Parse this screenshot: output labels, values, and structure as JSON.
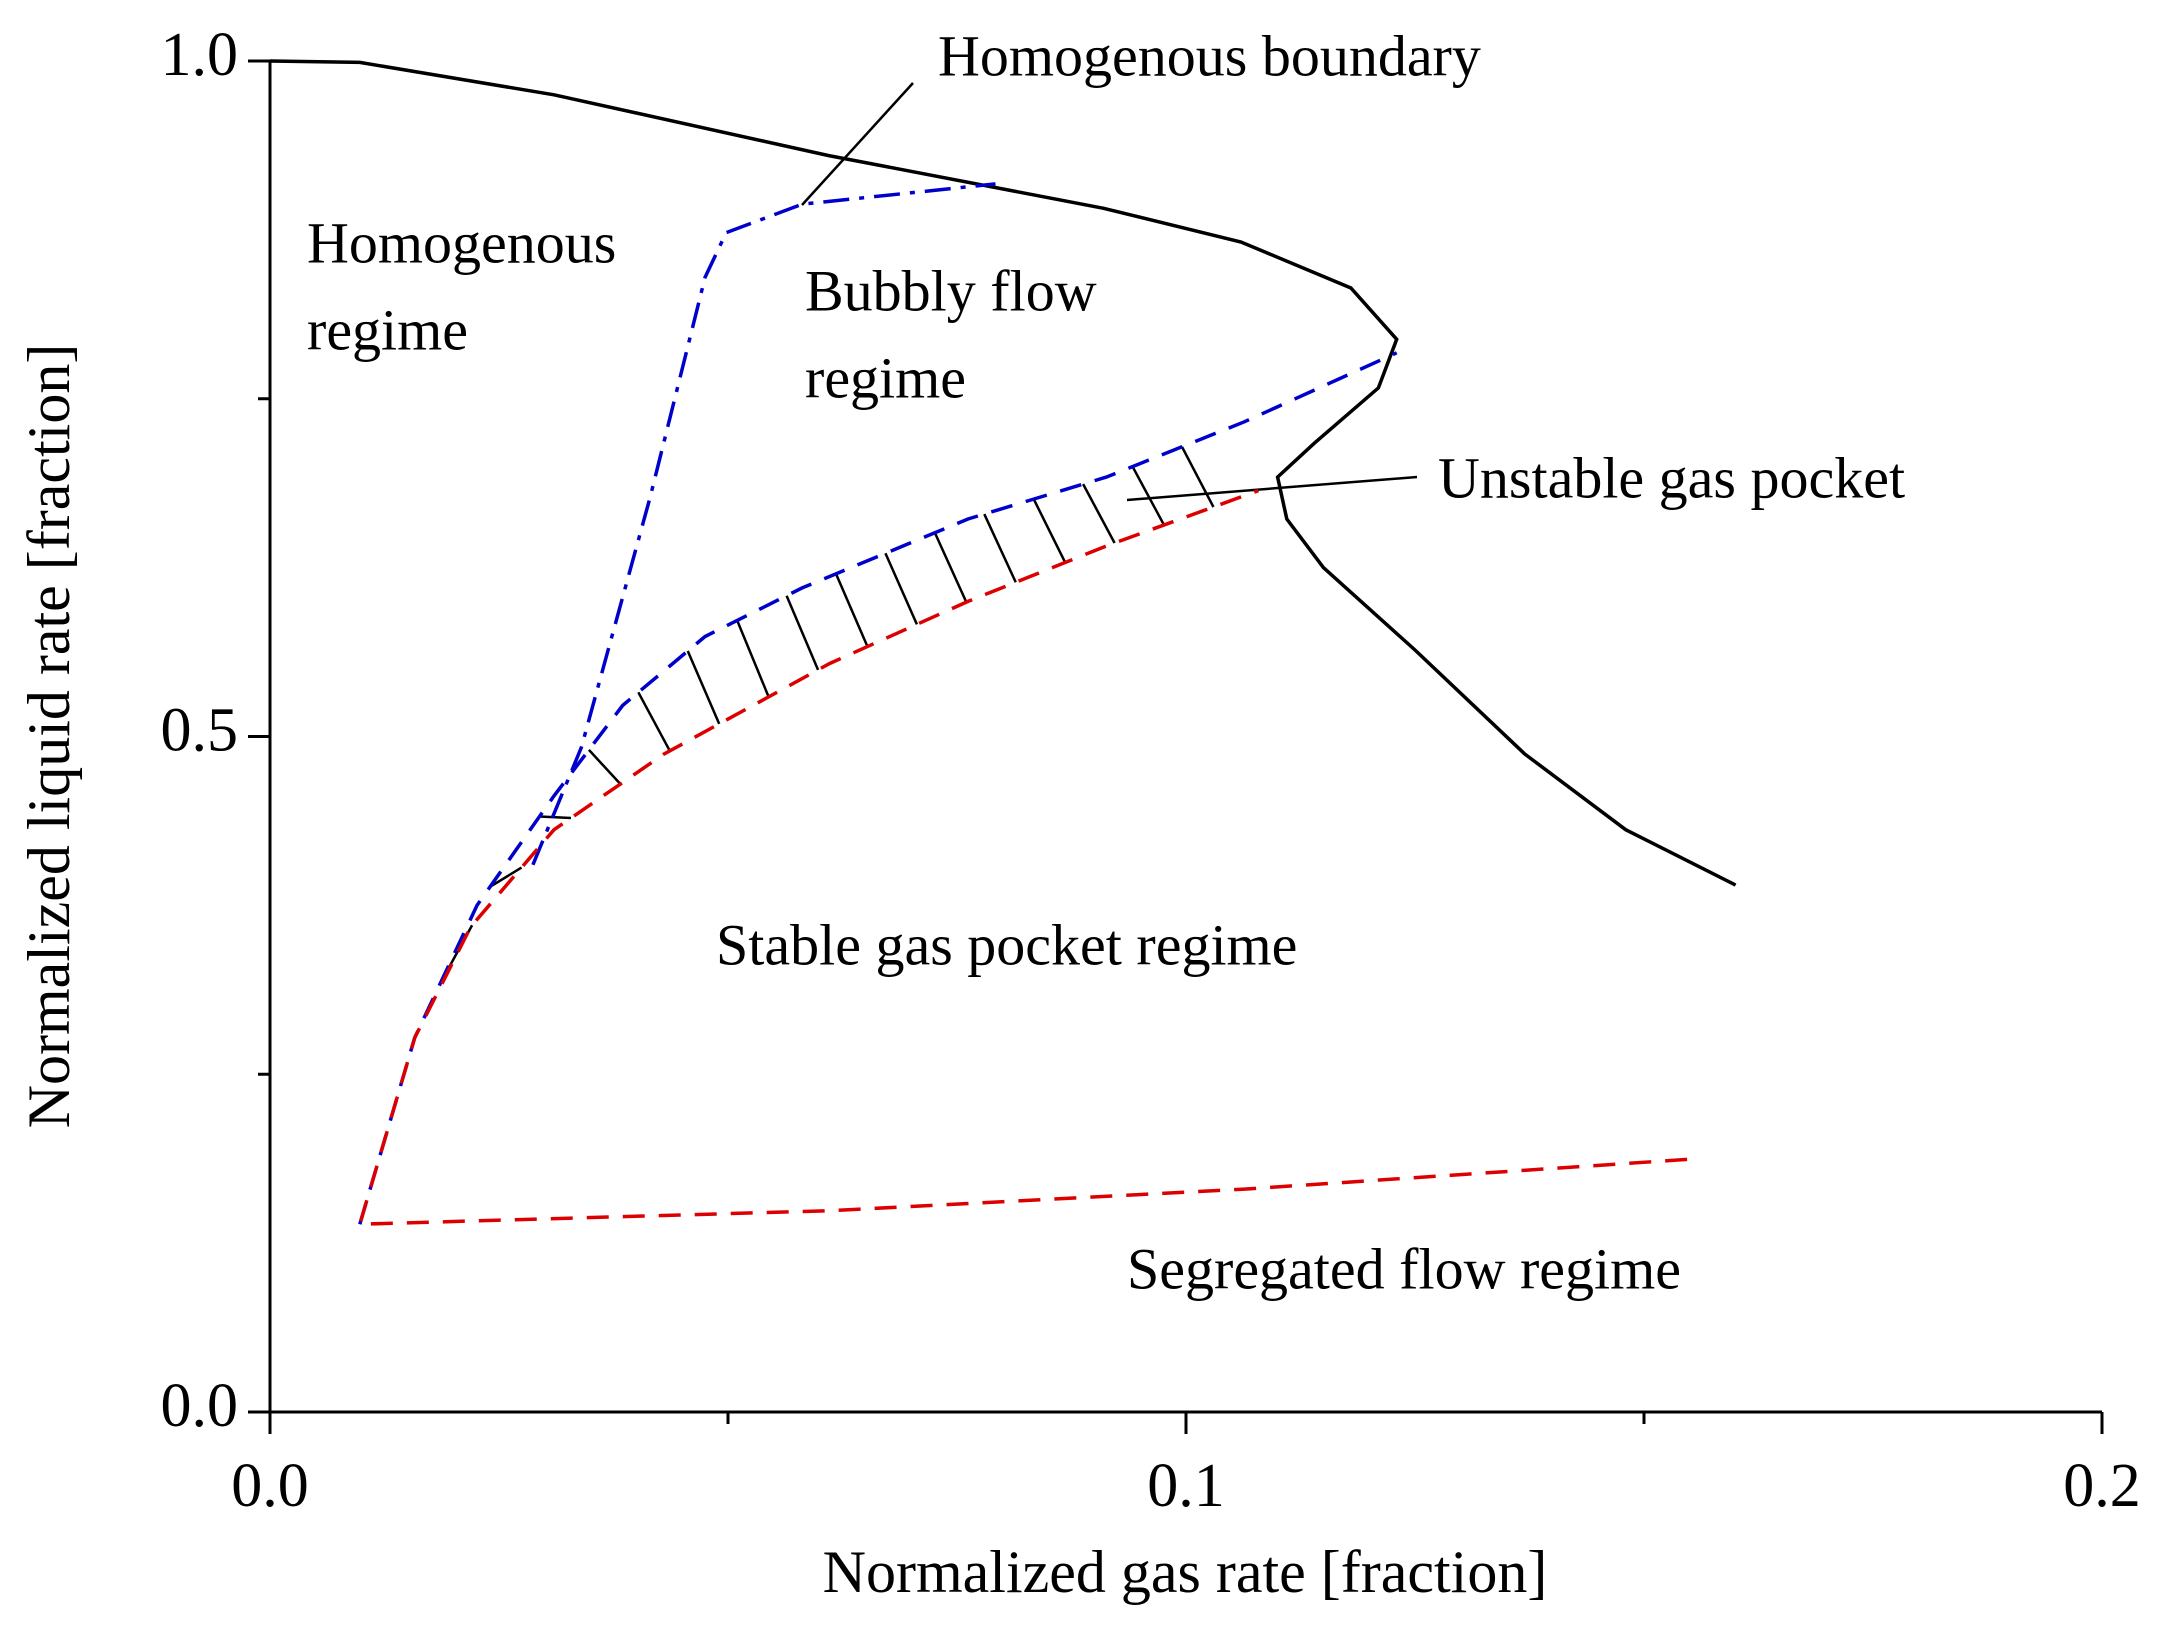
{
  "chart_data": {
    "type": "line",
    "xlabel": "Normalized gas rate [fraction]",
    "ylabel": "Normalized liquid rate [fraction]",
    "xlim": [
      0,
      0.2
    ],
    "ylim": [
      0,
      1
    ],
    "xticks": [
      {
        "value": 0,
        "label": "0.0"
      },
      0.1,
      0.2
    ],
    "yticks": [
      {
        "value": 0,
        "label": "0.0"
      },
      0.5,
      {
        "value": 1,
        "label": "1.0"
      }
    ],
    "xminorticks": [
      0.05,
      0.15
    ],
    "yminorticks": [
      0.25,
      0.75
    ],
    "series": [
      {
        "color": "#000000",
        "dash": "solid",
        "x": [
          0,
          0.0098,
          0.031,
          0.061,
          0.091,
          0.106,
          0.118,
          0.123,
          0.121,
          0.114,
          0.11,
          0.111,
          0.115,
          0.125,
          0.137,
          0.148,
          0.16
        ],
        "values": [
          1.0,
          0.999,
          0.975,
          0.93,
          0.891,
          0.866,
          0.832,
          0.794,
          0.758,
          0.717,
          0.692,
          0.661,
          0.625,
          0.564,
          0.487,
          0.431,
          0.39
        ]
      },
      {
        "color": "#0000cc",
        "dash": "dashdot",
        "x": [
          0.0287,
          0.034,
          0.0415,
          0.0475,
          0.0498,
          0.0581,
          0.0792
        ],
        "values": [
          0.405,
          0.492,
          0.677,
          0.84,
          0.873,
          0.894,
          0.909
        ]
      },
      {
        "color": "#0000cc",
        "dash": "dash",
        "x": [
          0.0098,
          0.0158,
          0.0226,
          0.031,
          0.0385,
          0.0475,
          0.0581,
          0.0762,
          0.0913,
          0.1064,
          0.123
        ],
        "values": [
          0.139,
          0.277,
          0.375,
          0.456,
          0.523,
          0.574,
          0.61,
          0.661,
          0.692,
          0.733,
          0.784
        ]
      },
      {
        "color": "#dd0000",
        "dash": "dash",
        "x": [
          0.1547,
          0.1064,
          0.0611,
          0.0098,
          0.0158,
          0.0219,
          0.031,
          0.043,
          0.0611,
          0.0762,
          0.0913,
          0.1079
        ],
        "values": [
          0.187,
          0.165,
          0.149,
          0.139,
          0.277,
          0.359,
          0.431,
          0.487,
          0.554,
          0.6,
          0.641,
          0.682
        ]
      }
    ],
    "annotations": [
      "Homogenous boundary",
      "Homogenous",
      "regime",
      "Bubbly flow",
      "regime",
      "Unstable gas pocket",
      "Stable gas pocket regime",
      "Segregated flow regime"
    ]
  }
}
